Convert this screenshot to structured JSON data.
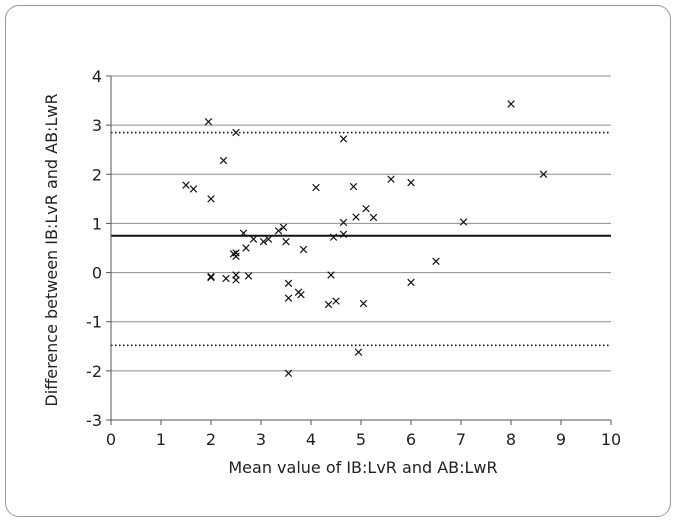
{
  "chart_data": {
    "type": "scatter",
    "xlabel": "Mean value of IB:LvR and AB:LwR",
    "ylabel": "Difference between IB:LvR and AB:LwR",
    "xlim": [
      0,
      10
    ],
    "ylim": [
      -3,
      4
    ],
    "xticks": [
      "0",
      "1",
      "2",
      "3",
      "4",
      "5",
      "6",
      "7",
      "8",
      "9",
      "10"
    ],
    "yticks": [
      "4",
      "3",
      "2",
      "1",
      "0",
      "-1",
      "-2",
      "-3"
    ],
    "grid": "horizontal",
    "marker": "x",
    "reference_lines": [
      {
        "style": "dotted",
        "y": 2.85
      },
      {
        "style": "solid",
        "y": 0.75
      },
      {
        "style": "dotted",
        "y": -1.48
      }
    ],
    "points": [
      [
        1.5,
        1.78
      ],
      [
        1.65,
        1.7
      ],
      [
        1.95,
        3.07
      ],
      [
        2.0,
        1.5
      ],
      [
        2.0,
        -0.1
      ],
      [
        2.0,
        -0.08
      ],
      [
        2.25,
        2.28
      ],
      [
        2.3,
        -0.12
      ],
      [
        2.45,
        0.38
      ],
      [
        2.5,
        2.85
      ],
      [
        2.5,
        0.4
      ],
      [
        2.5,
        0.33
      ],
      [
        2.5,
        -0.05
      ],
      [
        2.5,
        -0.15
      ],
      [
        2.65,
        0.8
      ],
      [
        2.7,
        0.5
      ],
      [
        2.75,
        -0.07
      ],
      [
        2.85,
        0.68
      ],
      [
        3.05,
        0.63
      ],
      [
        3.15,
        0.68
      ],
      [
        3.35,
        0.85
      ],
      [
        3.45,
        0.92
      ],
      [
        3.5,
        0.63
      ],
      [
        3.55,
        -0.22
      ],
      [
        3.55,
        -0.52
      ],
      [
        3.55,
        -2.05
      ],
      [
        3.75,
        -0.4
      ],
      [
        3.8,
        -0.45
      ],
      [
        3.85,
        0.47
      ],
      [
        4.1,
        1.73
      ],
      [
        4.35,
        -0.65
      ],
      [
        4.4,
        -0.05
      ],
      [
        4.45,
        0.72
      ],
      [
        4.5,
        -0.58
      ],
      [
        4.65,
        2.72
      ],
      [
        4.65,
        1.02
      ],
      [
        4.65,
        0.78
      ],
      [
        4.85,
        1.75
      ],
      [
        4.9,
        1.13
      ],
      [
        4.95,
        -1.62
      ],
      [
        5.05,
        -0.63
      ],
      [
        5.1,
        1.3
      ],
      [
        5.25,
        1.12
      ],
      [
        5.6,
        1.9
      ],
      [
        6.0,
        1.83
      ],
      [
        6.0,
        -0.2
      ],
      [
        6.5,
        0.23
      ],
      [
        7.05,
        1.03
      ],
      [
        8.0,
        3.43
      ],
      [
        8.65,
        2.0
      ]
    ]
  }
}
